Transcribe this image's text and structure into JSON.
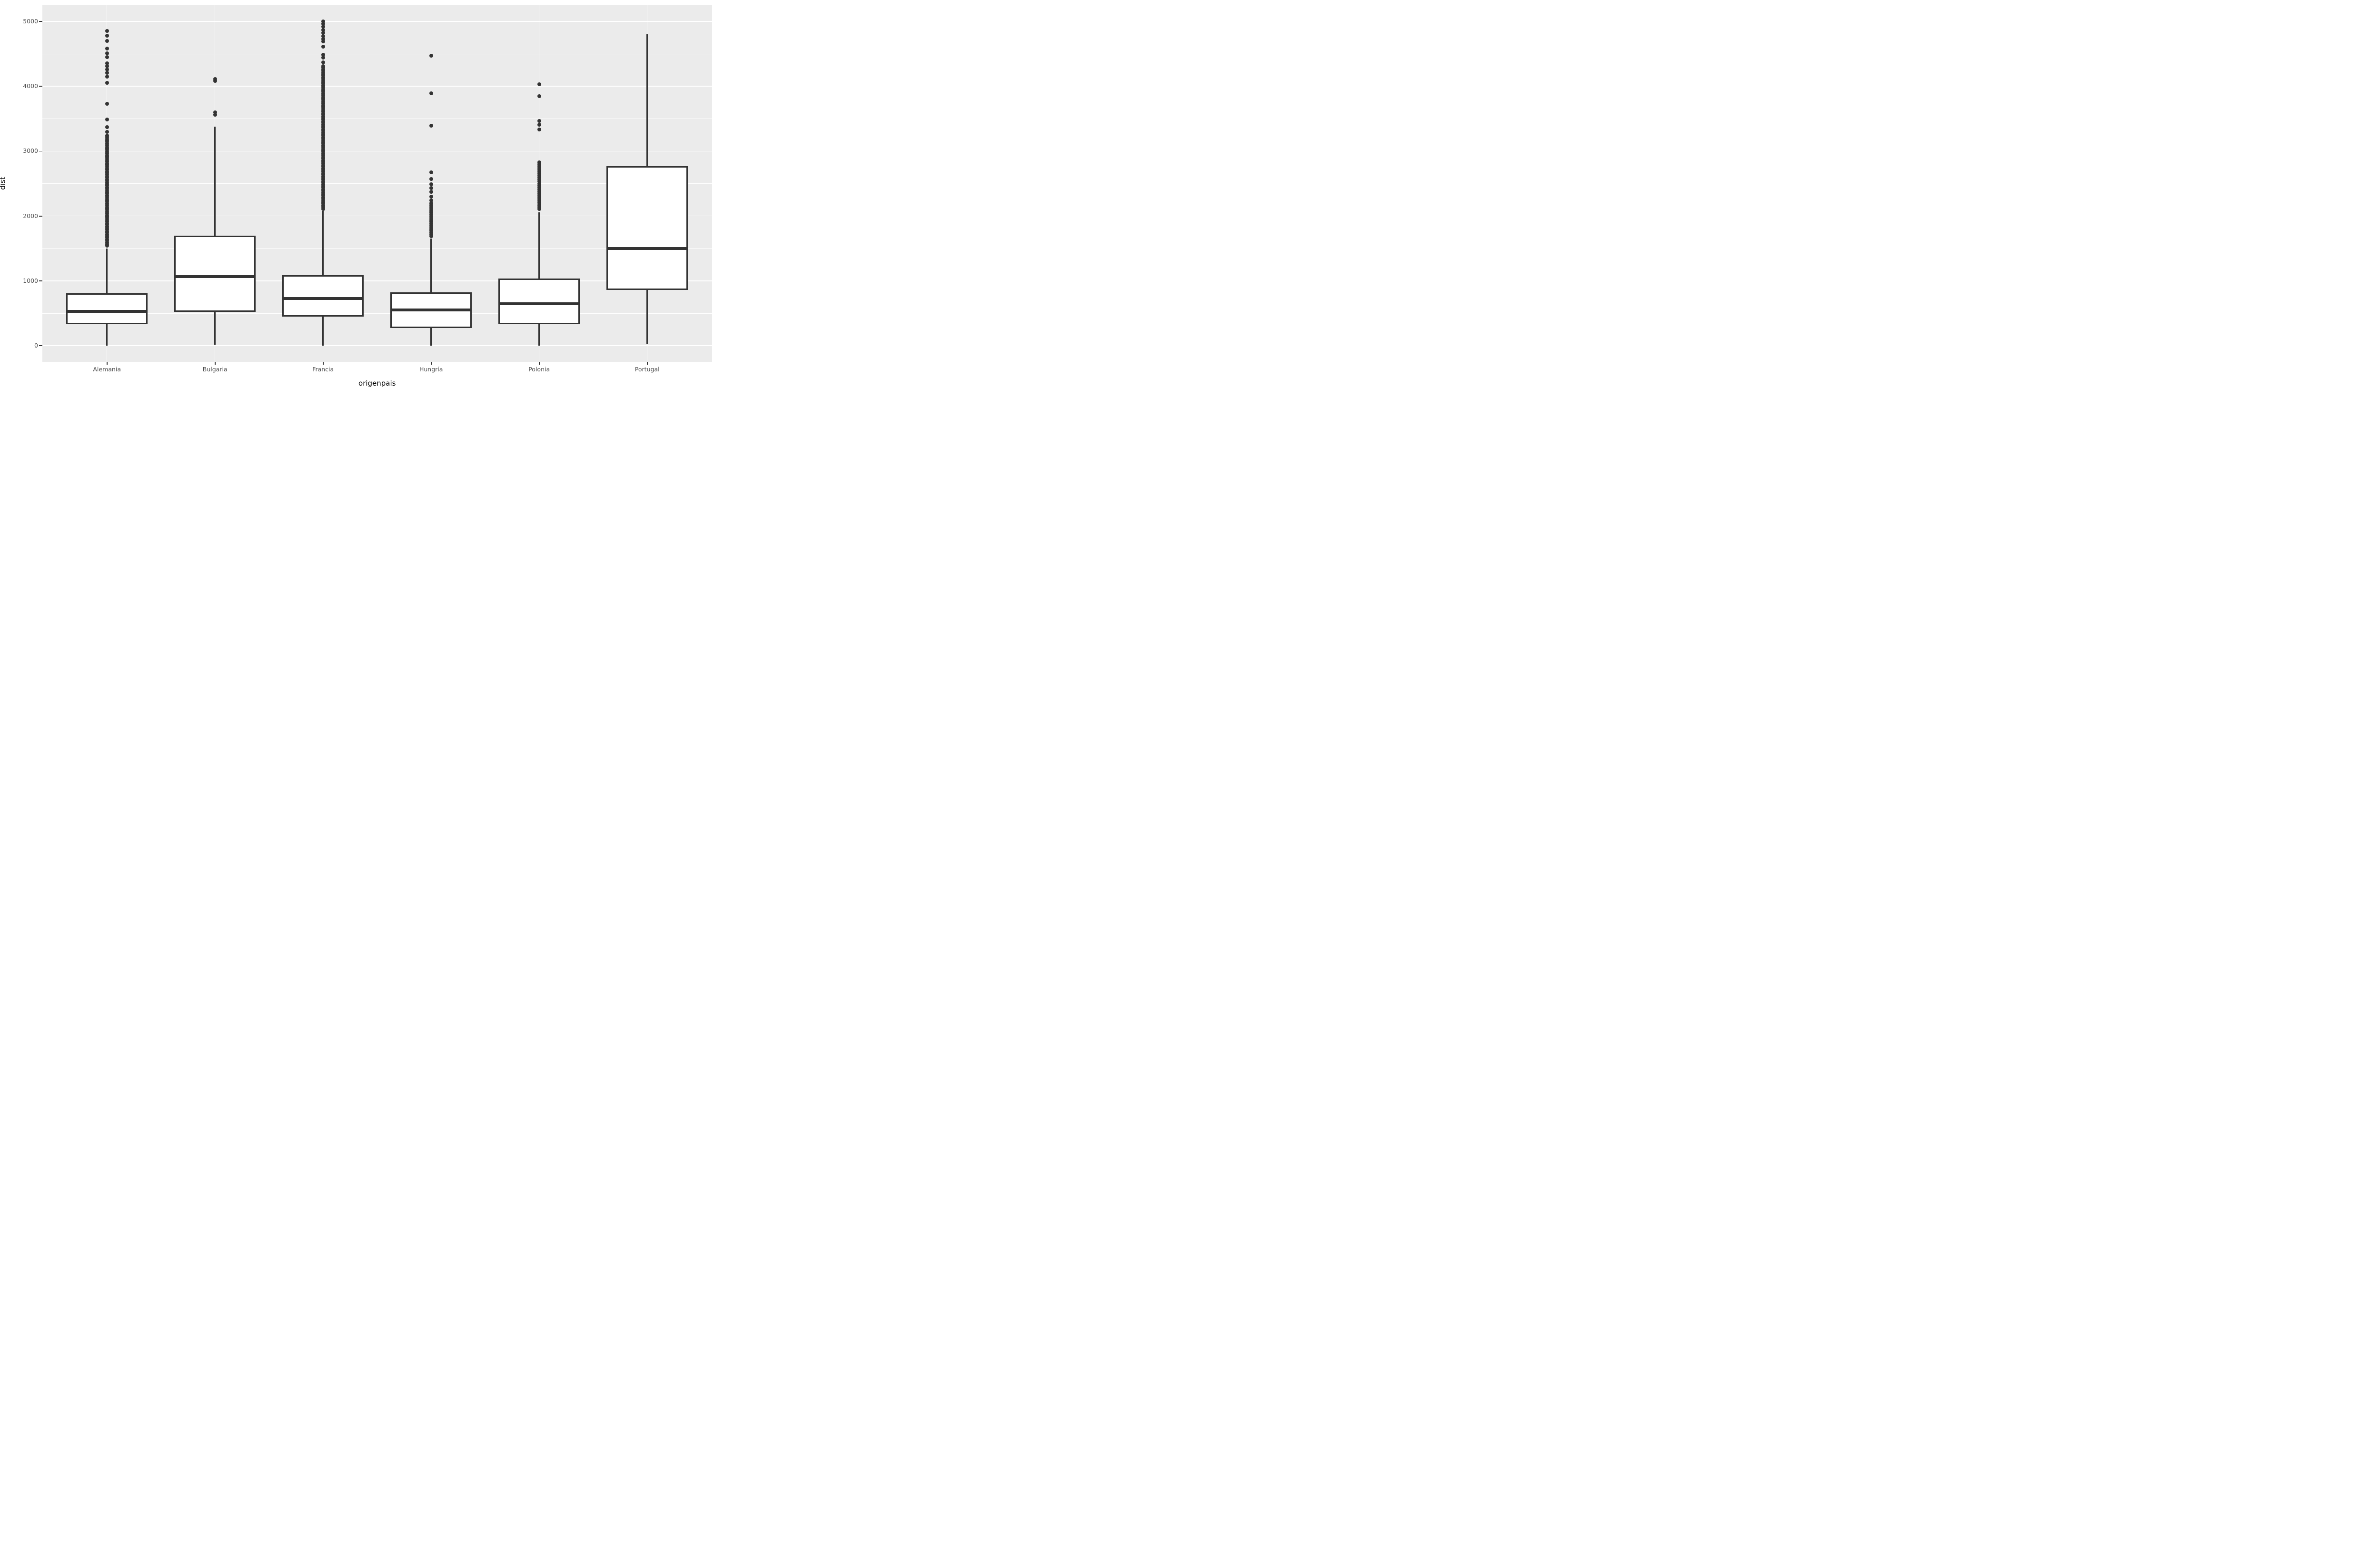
{
  "axes": {
    "y_title": "dist",
    "x_title": "origenpais",
    "y_tick_labels": [
      "0",
      "1000",
      "2000",
      "3000",
      "4000",
      "5000"
    ],
    "y_tick_values": [
      0,
      1000,
      2000,
      3000,
      4000,
      5000
    ],
    "y_minor_values": [
      500,
      1500,
      2500,
      3500,
      4500
    ]
  },
  "colors": {
    "panel_background": "#EBEBEB",
    "grid": "#FFFFFF",
    "box_border": "#333333",
    "box_fill": "#FFFFFF",
    "outlier": "#333333",
    "tick_text": "#4D4D4D",
    "axis_title_text": "#000000"
  },
  "chart_data": {
    "type": "boxplot",
    "title": "",
    "xlabel": "origenpais",
    "ylabel": "dist",
    "ylim": [
      -250,
      5250
    ],
    "grid": "on",
    "legend": "none",
    "categories": [
      "Alemania",
      "Bulgaria",
      "Francia",
      "Hungría",
      "Polonia",
      "Portugal"
    ],
    "series": [
      {
        "name": "Alemania",
        "whisker_low": 5,
        "q1": 330,
        "median": 530,
        "q3": 810,
        "whisker_high": 1500,
        "outliers": [
          1540,
          1565,
          1590,
          1615,
          1640,
          1665,
          1690,
          1715,
          1740,
          1765,
          1790,
          1815,
          1840,
          1865,
          1890,
          1915,
          1940,
          1965,
          1990,
          2015,
          2040,
          2065,
          2090,
          2115,
          2140,
          2165,
          2190,
          2215,
          2240,
          2265,
          2290,
          2315,
          2340,
          2365,
          2390,
          2415,
          2440,
          2465,
          2490,
          2515,
          2540,
          2565,
          2590,
          2615,
          2640,
          2665,
          2690,
          2715,
          2740,
          2765,
          2790,
          2815,
          2840,
          2865,
          2890,
          2915,
          2940,
          2965,
          2990,
          3015,
          3040,
          3065,
          3090,
          3115,
          3140,
          3165,
          3190,
          3215,
          3240,
          3300,
          3370,
          3490,
          3730,
          4050,
          4150,
          4210,
          4260,
          4310,
          4350,
          4450,
          4510,
          4580,
          4700,
          4780,
          4855
        ]
      },
      {
        "name": "Bulgaria",
        "whisker_low": 15,
        "q1": 520,
        "median": 1065,
        "q3": 1700,
        "whisker_high": 3380,
        "outliers": [
          3560,
          3595,
          4085,
          4110
        ]
      },
      {
        "name": "Francia",
        "whisker_low": 1,
        "q1": 450,
        "median": 730,
        "q3": 1090,
        "whisker_high": 2080,
        "outliers": [
          2110,
          2135,
          2160,
          2185,
          2210,
          2235,
          2260,
          2285,
          2310,
          2335,
          2360,
          2385,
          2410,
          2435,
          2460,
          2485,
          2510,
          2535,
          2560,
          2585,
          2610,
          2635,
          2660,
          2685,
          2710,
          2735,
          2760,
          2785,
          2810,
          2835,
          2860,
          2885,
          2910,
          2935,
          2960,
          2985,
          3010,
          3035,
          3060,
          3085,
          3110,
          3135,
          3160,
          3185,
          3210,
          3235,
          3260,
          3285,
          3310,
          3335,
          3360,
          3385,
          3410,
          3435,
          3460,
          3485,
          3510,
          3535,
          3560,
          3585,
          3610,
          3635,
          3660,
          3685,
          3710,
          3735,
          3760,
          3785,
          3810,
          3835,
          3860,
          3885,
          3910,
          3935,
          3960,
          3985,
          4010,
          4035,
          4060,
          4085,
          4110,
          4135,
          4160,
          4185,
          4210,
          4235,
          4260,
          4285,
          4310,
          4365,
          4440,
          4485,
          4610,
          4690,
          4730,
          4770,
          4825,
          4870,
          4915,
          4960,
          5000
        ]
      },
      {
        "name": "Hungría",
        "whisker_low": 1,
        "q1": 270,
        "median": 550,
        "q3": 825,
        "whisker_high": 1650,
        "outliers": [
          1690,
          1718,
          1746,
          1774,
          1802,
          1830,
          1858,
          1886,
          1914,
          1942,
          1970,
          1998,
          2026,
          2054,
          2082,
          2110,
          2138,
          2166,
          2194,
          2240,
          2300,
          2370,
          2430,
          2490,
          2570,
          2670,
          3390,
          3890,
          4470
        ]
      },
      {
        "name": "Polonia",
        "whisker_low": 5,
        "q1": 335,
        "median": 650,
        "q3": 1040,
        "whisker_high": 2060,
        "outliers": [
          2110,
          2140,
          2170,
          2200,
          2230,
          2260,
          2290,
          2320,
          2350,
          2380,
          2410,
          2440,
          2470,
          2500,
          2530,
          2560,
          2590,
          2620,
          2650,
          2680,
          2710,
          2740,
          2770,
          2800,
          2830,
          3330,
          3410,
          3465,
          3850,
          4030
        ]
      },
      {
        "name": "Portugal",
        "whisker_low": 30,
        "q1": 860,
        "median": 1500,
        "q3": 2770,
        "whisker_high": 4800,
        "outliers": []
      }
    ]
  }
}
